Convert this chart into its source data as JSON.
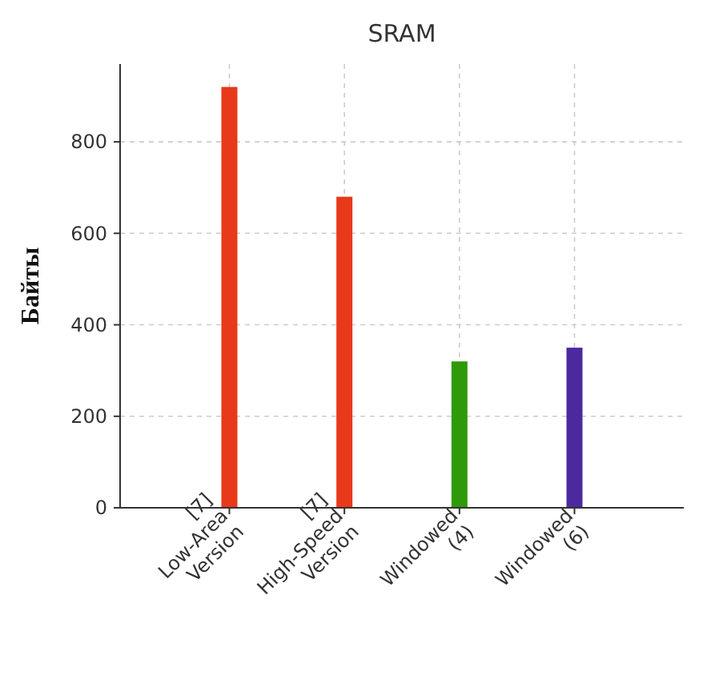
{
  "chart_data": {
    "type": "bar",
    "title": "SRAM",
    "ylabel": "Байты",
    "categories": [
      "[7]\nLow-Area\nVersion",
      "[7]\nHigh-Speed\nVersion",
      "Windowed\n(4)",
      "Windowed\n(6)"
    ],
    "values": [
      920,
      680,
      320,
      350
    ],
    "colors": [
      "#e8391a",
      "#e8391a",
      "#2e9a0a",
      "#4b2aa0"
    ],
    "ylim": [
      0,
      970
    ],
    "yticks": [
      0,
      200,
      400,
      600,
      800
    ],
    "grid": true
  }
}
